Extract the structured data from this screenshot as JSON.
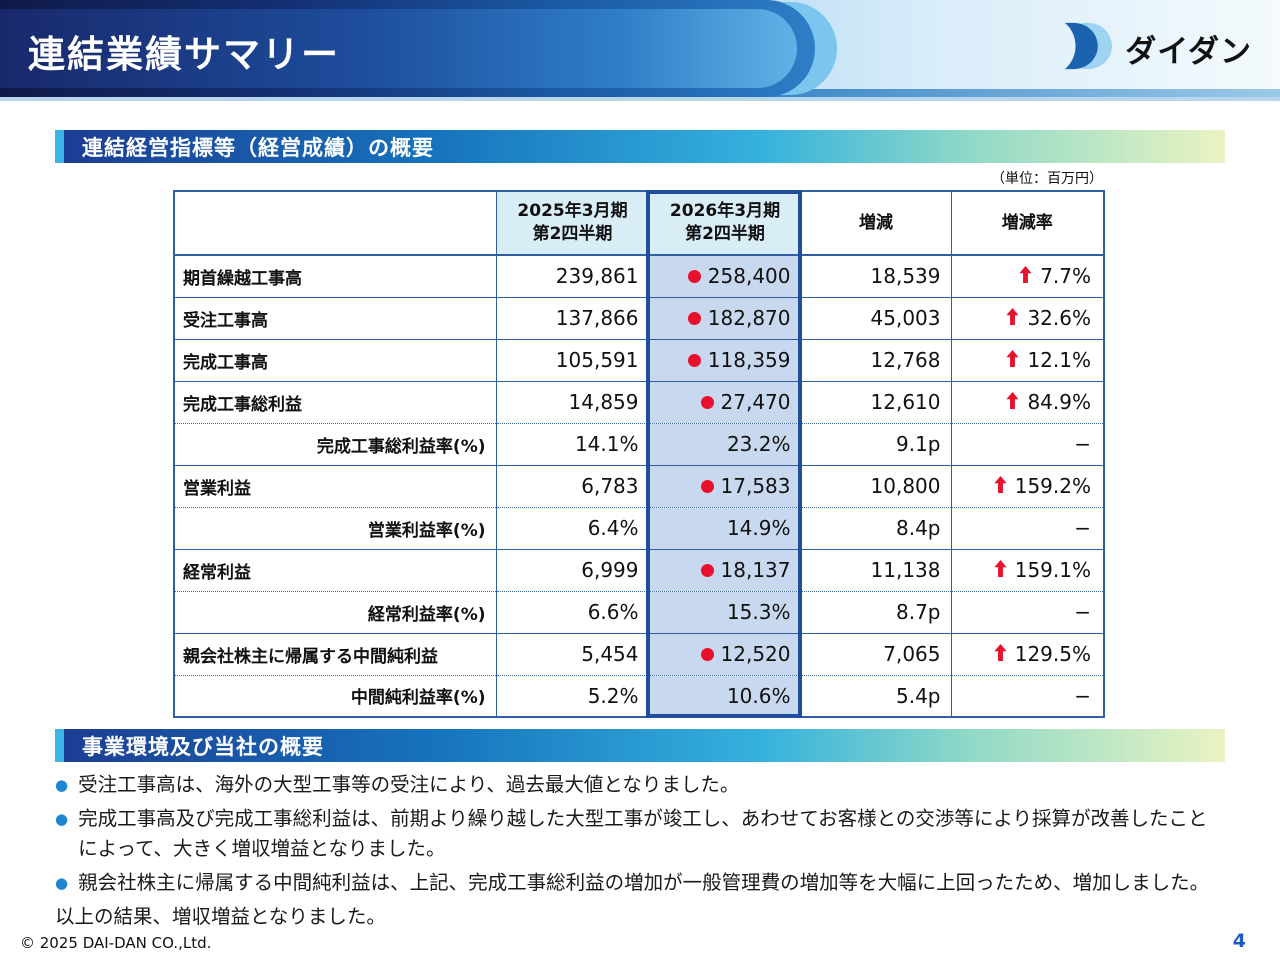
{
  "header": {
    "title": "連結業績サマリー",
    "logo_text": "ダイダン"
  },
  "sections": {
    "performance_title": "連結経営指標等（経営成績）の概要",
    "unit_note": "（単位：百万円）",
    "business_title": "事業環境及び当社の概要"
  },
  "table": {
    "columns": [
      "",
      "2025年3月期\n第2四半期",
      "2026年3月期\n第2四半期",
      "増減",
      "増減率"
    ],
    "rows": [
      {
        "label": "期首繰越工事高",
        "type": "main",
        "prev": "239,861",
        "curr": "258,400",
        "dot": true,
        "diff": "18,539",
        "change": "7.7%",
        "arrow": true,
        "sep": "solid"
      },
      {
        "label": "受注工事高",
        "type": "main",
        "prev": "137,866",
        "curr": "182,870",
        "dot": true,
        "diff": "45,003",
        "change": "32.6%",
        "arrow": true,
        "sep": "solid"
      },
      {
        "label": "完成工事高",
        "type": "main",
        "prev": "105,591",
        "curr": "118,359",
        "dot": true,
        "diff": "12,768",
        "change": "12.1%",
        "arrow": true,
        "sep": "solid"
      },
      {
        "label": "完成工事総利益",
        "type": "main",
        "prev": "14,859",
        "curr": "27,470",
        "dot": true,
        "diff": "12,610",
        "change": "84.9%",
        "arrow": true,
        "sep": "dotted"
      },
      {
        "label": "完成工事総利益率(%)",
        "type": "rate",
        "prev": "14.1%",
        "curr": "23.2%",
        "dot": false,
        "diff": "9.1p",
        "change": "−",
        "arrow": false,
        "sep": "solid"
      },
      {
        "label": "営業利益",
        "type": "main",
        "prev": "6,783",
        "curr": "17,583",
        "dot": true,
        "diff": "10,800",
        "change": "159.2%",
        "arrow": true,
        "sep": "dotted"
      },
      {
        "label": "営業利益率(%)",
        "type": "rate",
        "prev": "6.4%",
        "curr": "14.9%",
        "dot": false,
        "diff": "8.4p",
        "change": "−",
        "arrow": false,
        "sep": "solid"
      },
      {
        "label": "経常利益",
        "type": "main",
        "prev": "6,999",
        "curr": "18,137",
        "dot": true,
        "diff": "11,138",
        "change": "159.1%",
        "arrow": true,
        "sep": "dotted"
      },
      {
        "label": "経常利益率(%)",
        "type": "rate",
        "prev": "6.6%",
        "curr": "15.3%",
        "dot": false,
        "diff": "8.7p",
        "change": "−",
        "arrow": false,
        "sep": "solid"
      },
      {
        "label": "親会社株主に帰属する中間純利益",
        "type": "main",
        "prev": "5,454",
        "curr": "12,520",
        "dot": true,
        "diff": "7,065",
        "change": "129.5%",
        "arrow": true,
        "sep": "dotted"
      },
      {
        "label": "中間純利益率(%)",
        "type": "rate",
        "prev": "5.2%",
        "curr": "10.6%",
        "dot": false,
        "diff": "5.4p",
        "change": "−",
        "arrow": false,
        "sep": "none"
      }
    ]
  },
  "notes": {
    "bullets": [
      "受注工事高は、海外の大型工事等の受注により、過去最大値となりました。",
      "完成工事高及び完成工事総利益は、前期より繰り越した大型工事が竣工し、あわせてお客様との交渉等により採算が改善したことによって、大きく増収増益となりました。",
      "親会社株主に帰属する中間純利益は、上記、完成工事総利益の増加が一般管理費の増加等を大幅に上回ったため、増加しました。"
    ],
    "closing": "以上の結果、増収増益となりました。"
  },
  "footer": {
    "copyright": "© 2025 DAI-DAN CO.,Ltd.",
    "page_number": "4"
  },
  "colors": {
    "header_navy": "#101a49",
    "header_blue": "#2e7ec6",
    "accent_light_blue": "#3bb4e7",
    "section_gradient_end": "#eaf3c2",
    "table_border": "#2e5fa3",
    "highlight_border": "#1f4e9c",
    "header_cell_bg": "#d9edf7",
    "highlight_cell_bg": "#c8d9ef",
    "marker_red": "#e8112d",
    "bullet_blue": "#1f86d2",
    "page_number_blue": "#1f5cc5"
  }
}
